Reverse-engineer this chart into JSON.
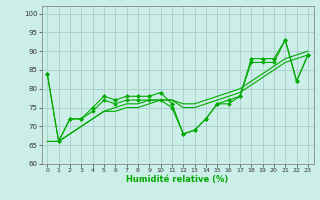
{
  "background_color": "#cceee8",
  "grid_color": "#aacccc",
  "line_color": "#00aa00",
  "xlabel": "Humidité relative (%)",
  "xlim": [
    -0.5,
    23.5
  ],
  "ylim": [
    60,
    102
  ],
  "yticks": [
    60,
    65,
    70,
    75,
    80,
    85,
    90,
    95,
    100
  ],
  "xticks": [
    0,
    1,
    2,
    3,
    4,
    5,
    6,
    7,
    8,
    9,
    10,
    11,
    12,
    13,
    14,
    15,
    16,
    17,
    18,
    19,
    20,
    21,
    22,
    23
  ],
  "series_marked1": [
    84,
    66,
    72,
    72,
    75,
    78,
    77,
    78,
    78,
    78,
    79,
    76,
    68,
    69,
    72,
    76,
    77,
    78,
    88,
    88,
    88,
    93,
    82,
    89
  ],
  "series_marked2": [
    84,
    66,
    72,
    72,
    74,
    77,
    76,
    77,
    77,
    77,
    77,
    75,
    68,
    69,
    72,
    76,
    76,
    78,
    87,
    87,
    87,
    93,
    82,
    89
  ],
  "series_smooth1": [
    66,
    66,
    68,
    70,
    72,
    74,
    74,
    75,
    75,
    76,
    77,
    77,
    75,
    75,
    76,
    77,
    78,
    79,
    81,
    83,
    85,
    87,
    88,
    89
  ],
  "series_smooth2": [
    66,
    66,
    68,
    70,
    72,
    74,
    75,
    76,
    76,
    77,
    77,
    77,
    76,
    76,
    77,
    78,
    79,
    80,
    82,
    84,
    86,
    88,
    89,
    90
  ],
  "figsize": [
    3.2,
    2.0
  ],
  "dpi": 100
}
